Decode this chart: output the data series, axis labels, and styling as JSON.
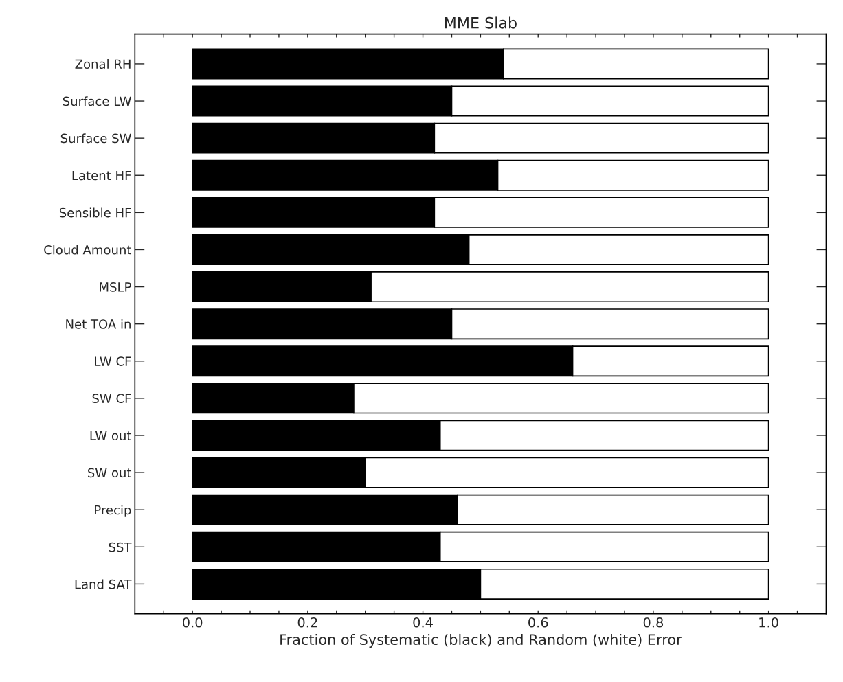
{
  "chart_data": {
    "type": "bar",
    "orientation": "horizontal",
    "stacked": true,
    "title": "MME Slab",
    "xlabel": "Fraction of Systematic (black) and Random (white) Error",
    "categories": [
      "Zonal RH",
      "Surface LW",
      "Surface SW",
      "Latent HF",
      "Sensible HF",
      "Cloud Amount",
      "MSLP",
      "Net TOA in",
      "LW CF",
      "SW CF",
      "LW out",
      "SW out",
      "Precip",
      "SST",
      "Land SAT"
    ],
    "series": [
      {
        "color": "#000000",
        "values": [
          0.54,
          0.45,
          0.42,
          0.53,
          0.42,
          0.48,
          0.31,
          0.45,
          0.66,
          0.28,
          0.43,
          0.3,
          0.46,
          0.43,
          0.5
        ]
      },
      {
        "color": "#ffffff",
        "values": [
          0.46,
          0.55,
          0.58,
          0.47,
          0.58,
          0.52,
          0.69,
          0.55,
          0.34,
          0.72,
          0.57,
          0.7,
          0.54,
          0.57,
          0.5
        ]
      }
    ],
    "xlim": [
      -0.1,
      1.1
    ],
    "xticks": [
      {
        "value": -0.05,
        "label": null
      },
      {
        "value": 0.0,
        "label": "0.0"
      },
      {
        "value": 0.05,
        "label": null
      },
      {
        "value": 0.1,
        "label": null
      },
      {
        "value": 0.15,
        "label": null
      },
      {
        "value": 0.2,
        "label": "0.2"
      },
      {
        "value": 0.25,
        "label": null
      },
      {
        "value": 0.3,
        "label": null
      },
      {
        "value": 0.35,
        "label": null
      },
      {
        "value": 0.4,
        "label": "0.4"
      },
      {
        "value": 0.45,
        "label": null
      },
      {
        "value": 0.5,
        "label": null
      },
      {
        "value": 0.55,
        "label": null
      },
      {
        "value": 0.6,
        "label": "0.6"
      },
      {
        "value": 0.65,
        "label": null
      },
      {
        "value": 0.7,
        "label": null
      },
      {
        "value": 0.75,
        "label": null
      },
      {
        "value": 0.8,
        "label": "0.8"
      },
      {
        "value": 0.85,
        "label": null
      },
      {
        "value": 0.9,
        "label": null
      },
      {
        "value": 0.95,
        "label": null
      },
      {
        "value": 1.0,
        "label": "1.0"
      },
      {
        "value": 1.05,
        "label": null
      }
    ],
    "grid": false,
    "legend": false
  }
}
